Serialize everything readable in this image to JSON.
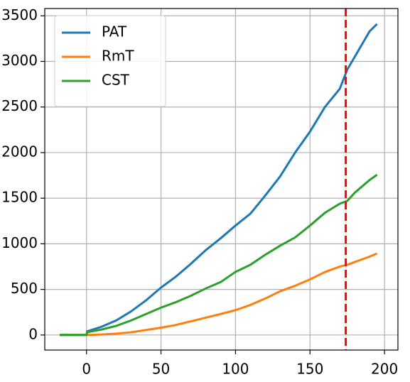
{
  "chart_data": {
    "type": "line",
    "x": [
      -18,
      0,
      0.5,
      10,
      20,
      30,
      40,
      50,
      60,
      70,
      80,
      90,
      100,
      110,
      120,
      130,
      140,
      150,
      160,
      170,
      175,
      180,
      190,
      195
    ],
    "series": [
      {
        "name": "PAT",
        "color": "#1f77b4",
        "values": [
          0,
          0,
          40,
          90,
          160,
          260,
          380,
          520,
          640,
          780,
          930,
          1060,
          1200,
          1330,
          1530,
          1740,
          2000,
          2230,
          2500,
          2700,
          2910,
          3050,
          3330,
          3410
        ]
      },
      {
        "name": "RmT",
        "color": "#ff7f0e",
        "values": [
          0,
          0,
          0,
          5,
          15,
          30,
          55,
          80,
          110,
          150,
          190,
          230,
          272,
          330,
          400,
          480,
          540,
          610,
          690,
          750,
          770,
          800,
          860,
          894
        ]
      },
      {
        "name": "CST",
        "color": "#2ca02c",
        "values": [
          0,
          0,
          30,
          60,
          100,
          160,
          230,
          300,
          360,
          430,
          510,
          580,
          692,
          770,
          880,
          980,
          1070,
          1200,
          1340,
          1440,
          1470,
          1560,
          1700,
          1757
        ]
      }
    ],
    "vline": {
      "x": 174,
      "color": "#ff0000"
    },
    "xlim": [
      -28,
      209
    ],
    "xticks": [
      0,
      50,
      100,
      150,
      200
    ],
    "ylim": [
      -165,
      3580
    ],
    "yticks": [
      0,
      500,
      1000,
      1500,
      2000,
      2500,
      3000,
      3500
    ],
    "grid": true,
    "legend": "upper left"
  }
}
